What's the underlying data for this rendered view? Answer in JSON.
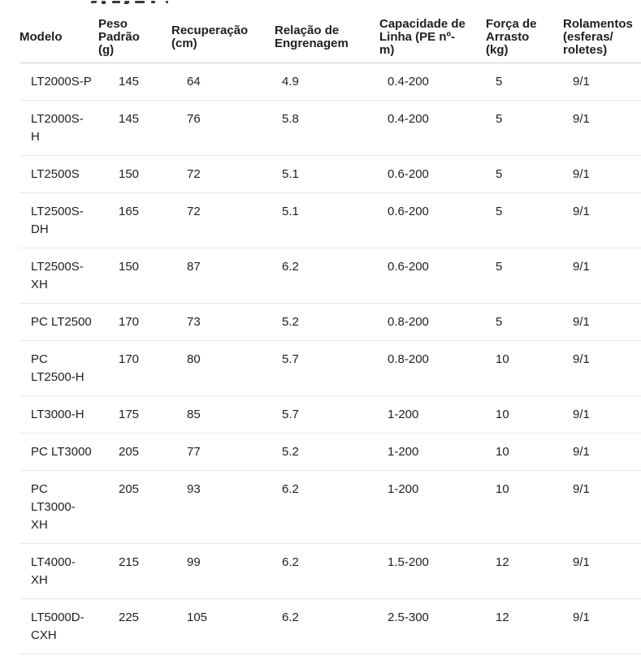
{
  "theme": {
    "text_color": "#1f1f1f",
    "header_border_color": "#cdcdcd",
    "row_border_color": "#e8e8e8",
    "background_color": "#ffffff"
  },
  "table": {
    "columns": [
      {
        "key": "modelo",
        "label": "Modelo"
      },
      {
        "key": "peso-padrao",
        "label": "Peso\nPadrão\n(g)"
      },
      {
        "key": "recuperacao",
        "label": "Recuperação\n(cm)"
      },
      {
        "key": "relacao-engrenagem",
        "label": "Relação de\nEngrenagem"
      },
      {
        "key": "capacidade-linha",
        "label": "Capacidade de\nLinha (PE nº-\nm)"
      },
      {
        "key": "forca-arrasto",
        "label": "Força de\nArrasto\n(kg)"
      },
      {
        "key": "rolamentos",
        "label": "Rolamentos\n(esferas/\nroletes)"
      }
    ],
    "rows": [
      [
        "LT2000S-P",
        "145",
        "64",
        "4.9",
        "0.4-200",
        "5",
        "9/1"
      ],
      [
        "LT2000S-\nH",
        "145",
        "76",
        "5.8",
        "0.4-200",
        "5",
        "9/1"
      ],
      [
        "LT2500S",
        "150",
        "72",
        "5.1",
        "0.6-200",
        "5",
        "9/1"
      ],
      [
        "LT2500S-\nDH",
        "165",
        "72",
        "5.1",
        "0.6-200",
        "5",
        "9/1"
      ],
      [
        "LT2500S-\nXH",
        "150",
        "87",
        "6.2",
        "0.6-200",
        "5",
        "9/1"
      ],
      [
        "PC LT2500",
        "170",
        "73",
        "5.2",
        "0.8-200",
        "5",
        "9/1"
      ],
      [
        "PC\nLT2500-H",
        "170",
        "80",
        "5.7",
        "0.8-200",
        "10",
        "9/1"
      ],
      [
        "LT3000-H",
        "175",
        "85",
        "5.7",
        "1-200",
        "10",
        "9/1"
      ],
      [
        "PC LT3000",
        "205",
        "77",
        "5.2",
        "1-200",
        "10",
        "9/1"
      ],
      [
        "PC\nLT3000-\nXH",
        "205",
        "93",
        "6.2",
        "1-200",
        "10",
        "9/1"
      ],
      [
        "LT4000-\nXH",
        "215",
        "99",
        "6.2",
        "1.5-200",
        "12",
        "9/1"
      ],
      [
        "LT5000D-\nCXH",
        "225",
        "105",
        "6.2",
        "2.5-300",
        "12",
        "9/1"
      ]
    ]
  }
}
